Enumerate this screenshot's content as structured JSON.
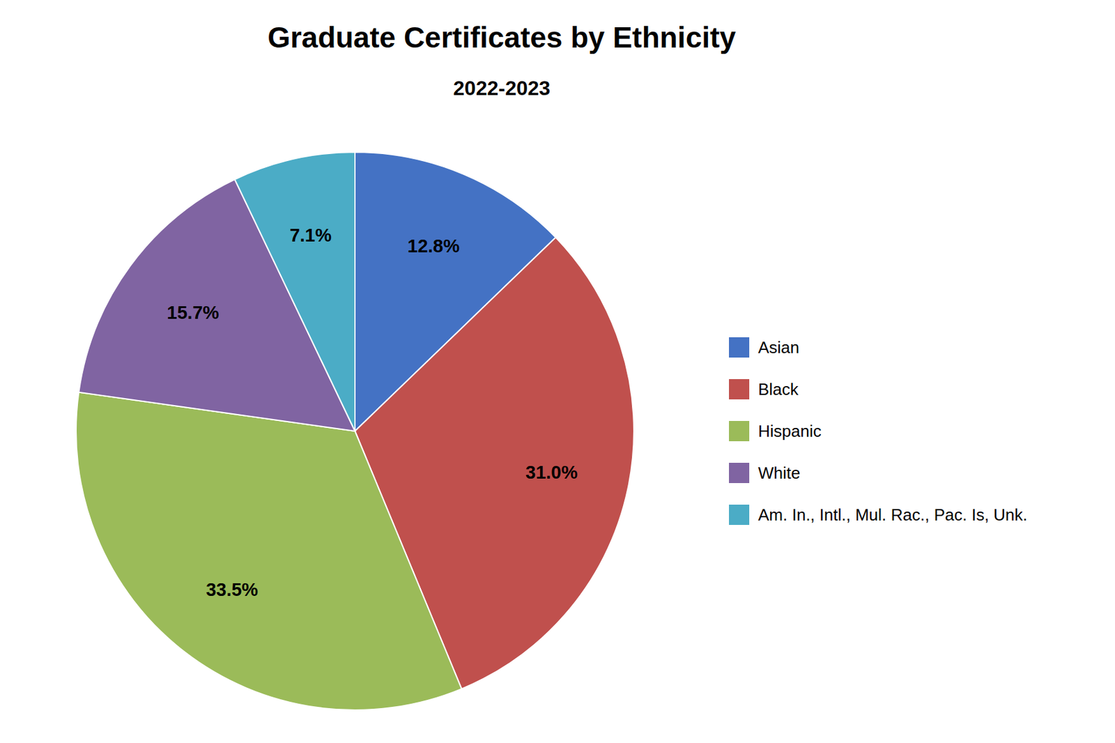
{
  "chart_data": {
    "type": "pie",
    "title": "Graduate Certificates by Ethnicity",
    "subtitle": "2022-2023",
    "categories": [
      "Asian",
      "Black",
      "Hispanic",
      "White",
      "Am. In., Intl., Mul. Rac., Pac. Is, Unk."
    ],
    "values": [
      12.8,
      31.0,
      33.5,
      15.7,
      7.1
    ],
    "value_labels": [
      "12.8%",
      "31.0%",
      "33.5%",
      "15.7%",
      "7.1%"
    ],
    "colors": [
      "#4472C4",
      "#C0504D",
      "#9BBB59",
      "#8064A2",
      "#4BACC6"
    ],
    "data_labels": true,
    "legend": "right"
  }
}
